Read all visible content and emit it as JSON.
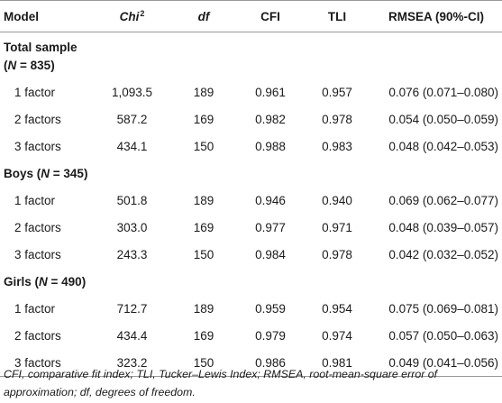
{
  "table": {
    "headers": {
      "model": "Model",
      "chi": "Chi",
      "chi_sup": "2",
      "df": "df",
      "cfi": "CFI",
      "tli": "TLI",
      "rmsea": "RMSEA (90%-CI)"
    },
    "groups": [
      {
        "title_pre": "Total sample",
        "n_label": "N",
        "n_value": "= 835",
        "rows": [
          {
            "model": "1 factor",
            "chi": "1,093.5",
            "df": "189",
            "cfi": "0.961",
            "tli": "0.957",
            "rmsea": "0.076 (0.071–0.080)"
          },
          {
            "model": "2 factors",
            "chi": "587.2",
            "df": "169",
            "cfi": "0.982",
            "tli": "0.978",
            "rmsea": "0.054 (0.050–0.059)"
          },
          {
            "model": "3 factors",
            "chi": "434.1",
            "df": "150",
            "cfi": "0.988",
            "tli": "0.983",
            "rmsea": "0.048 (0.042–0.053)"
          }
        ]
      },
      {
        "title_pre": "Boys",
        "n_label": "N",
        "n_value": "= 345",
        "rows": [
          {
            "model": "1 factor",
            "chi": "501.8",
            "df": "189",
            "cfi": "0.946",
            "tli": "0.940",
            "rmsea": "0.069 (0.062–0.077)"
          },
          {
            "model": "2 factors",
            "chi": "303.0",
            "df": "169",
            "cfi": "0.977",
            "tli": "0.971",
            "rmsea": "0.048 (0.039–0.057)"
          },
          {
            "model": "3 factors",
            "chi": "243.3",
            "df": "150",
            "cfi": "0.984",
            "tli": "0.978",
            "rmsea": "0.042 (0.032–0.052)"
          }
        ]
      },
      {
        "title_pre": "Girls",
        "n_label": "N",
        "n_value": "= 490",
        "rows": [
          {
            "model": "1 factor",
            "chi": "712.7",
            "df": "189",
            "cfi": "0.959",
            "tli": "0.954",
            "rmsea": "0.075 (0.069–0.081)"
          },
          {
            "model": "2 factors",
            "chi": "434.4",
            "df": "169",
            "cfi": "0.979",
            "tli": "0.974",
            "rmsea": "0.057 (0.050–0.063)"
          },
          {
            "model": "3 factors",
            "chi": "323.2",
            "df": "150",
            "cfi": "0.986",
            "tli": "0.981",
            "rmsea": "0.049 (0.041–0.056)"
          }
        ]
      }
    ]
  },
  "footnote": "CFI, comparative fit index; TLI, Tucker–Lewis Index; RMSEA, root-mean-square error of approximation; df, degrees of freedom."
}
